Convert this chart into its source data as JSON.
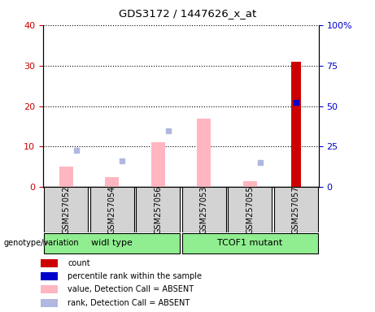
{
  "title": "GDS3172 / 1447626_x_at",
  "samples": [
    "GSM257052",
    "GSM257054",
    "GSM257056",
    "GSM257053",
    "GSM257055",
    "GSM257057"
  ],
  "groups": [
    "widl type",
    "TCOF1 mutant"
  ],
  "ylim_left": [
    0,
    40
  ],
  "ylim_right": [
    0,
    100
  ],
  "yticks_left": [
    0,
    10,
    20,
    30,
    40
  ],
  "yticks_right": [
    0,
    25,
    50,
    75,
    100
  ],
  "yticklabels_right": [
    "0",
    "25",
    "50",
    "75",
    "100%"
  ],
  "values_absent": [
    5.0,
    2.5,
    11.0,
    17.0,
    1.5,
    0.0
  ],
  "ranks_absent_pct": [
    22.5,
    16.25,
    35.0,
    0.0,
    15.0,
    0.0
  ],
  "count_values": [
    0.0,
    0.0,
    0.0,
    0.0,
    0.0,
    31.0
  ],
  "percentile_values": [
    0.0,
    0.0,
    0.0,
    0.0,
    0.0,
    52.5
  ],
  "bar_width": 0.3,
  "color_value_absent": "#FFB6C1",
  "color_rank_absent": "#B0B8E0",
  "color_count": "#CC0000",
  "color_percentile": "#0000CC",
  "color_group": "#90EE90",
  "color_sample_bg": "#D3D3D3",
  "left_tick_color": "#CC0000",
  "right_tick_color": "#0000CC",
  "legend_items": [
    "count",
    "percentile rank within the sample",
    "value, Detection Call = ABSENT",
    "rank, Detection Call = ABSENT"
  ],
  "legend_colors": [
    "#CC0000",
    "#0000CC",
    "#FFB6C1",
    "#B0B8E0"
  ]
}
